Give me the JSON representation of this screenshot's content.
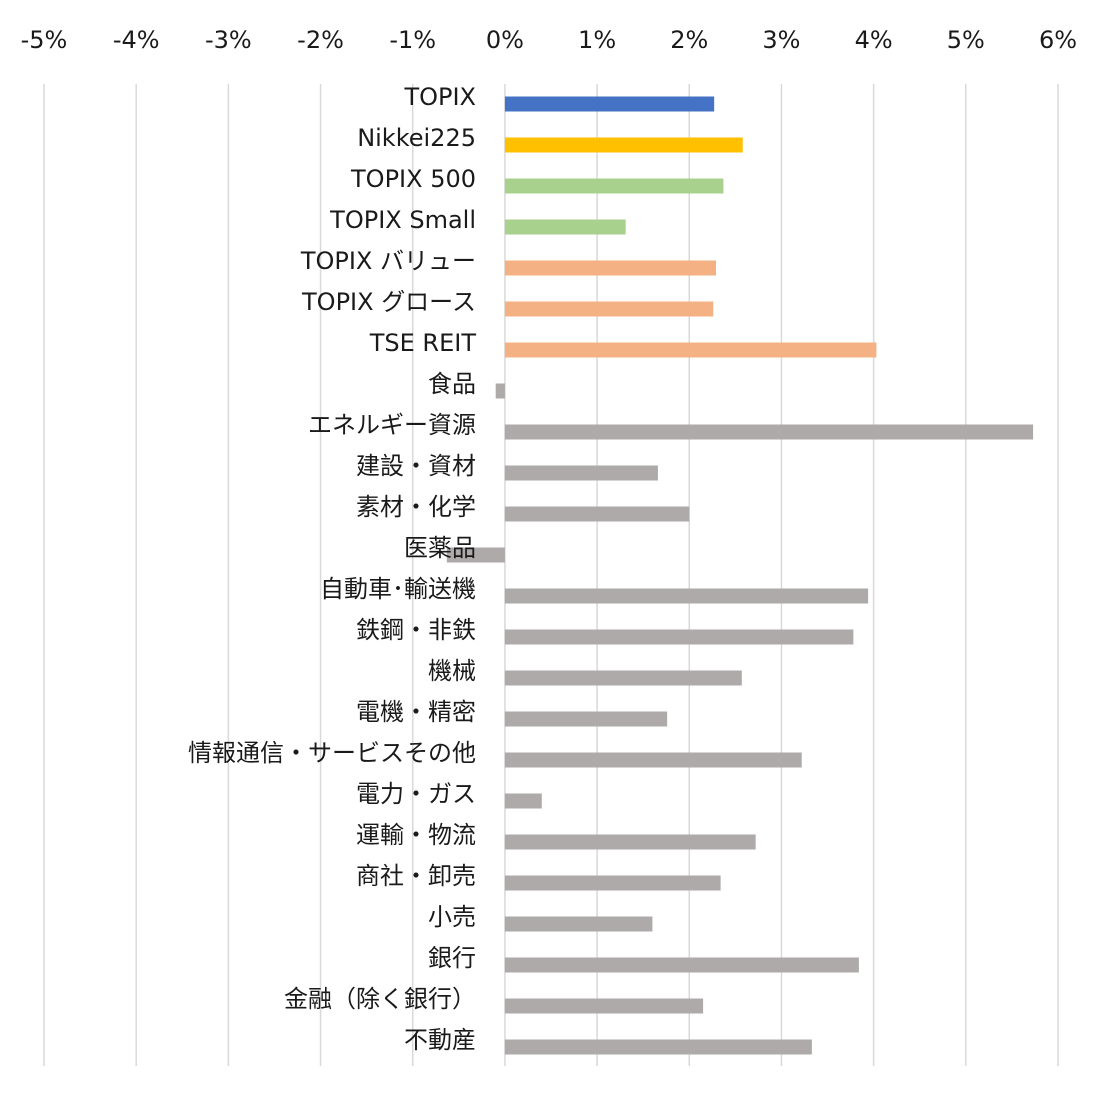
{
  "chart_data": {
    "type": "bar",
    "orientation": "horizontal",
    "title": "",
    "xlabel": "",
    "ylabel": "",
    "xlim": [
      -5,
      6
    ],
    "x_ticks": [
      -5,
      -4,
      -3,
      -2,
      -1,
      0,
      1,
      2,
      3,
      4,
      5,
      6
    ],
    "x_tick_labels": [
      "-5%",
      "-4%",
      "-3%",
      "-2%",
      "-1%",
      "0%",
      "1%",
      "2%",
      "3%",
      "4%",
      "5%",
      "6%"
    ],
    "x_axis_position": "top",
    "grid": true,
    "legend": "none",
    "unit": "%",
    "colors": {
      "topix": "#4472C4",
      "nikkei": "#FFC000",
      "size": "#A9D18E",
      "style": "#F4B183",
      "sector": "#AEAAAA",
      "grid": "#D9D9D9"
    },
    "categories": [
      "TOPIX",
      "Nikkei225",
      "TOPIX 500",
      "TOPIX Small",
      "TOPIX バリュー",
      "TOPIX グロース",
      "TSE REIT",
      "食品",
      "エネルギー資源",
      "建設・資材",
      "素材・化学",
      "医薬品",
      "自動車･輸送機",
      "鉄鋼・非鉄",
      "機械",
      "電機・精密",
      "情報通信・サービスその他",
      "電力・ガス",
      "運輸・物流",
      "商社・卸売",
      "小売",
      "銀行",
      "金融（除く銀行）",
      "不動産"
    ],
    "values": [
      2.27,
      2.58,
      2.37,
      1.31,
      2.29,
      2.26,
      4.03,
      -0.1,
      5.73,
      1.66,
      2.0,
      -0.63,
      3.94,
      3.78,
      2.57,
      1.76,
      3.22,
      0.4,
      2.72,
      2.34,
      1.6,
      3.84,
      2.15,
      3.33
    ],
    "bar_colors": [
      "topix",
      "nikkei",
      "size",
      "size",
      "style",
      "style",
      "style",
      "sector",
      "sector",
      "sector",
      "sector",
      "sector",
      "sector",
      "sector",
      "sector",
      "sector",
      "sector",
      "sector",
      "sector",
      "sector",
      "sector",
      "sector",
      "sector",
      "sector"
    ]
  }
}
